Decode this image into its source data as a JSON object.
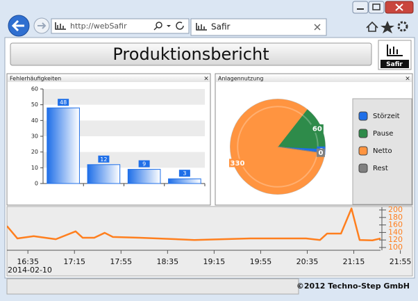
{
  "browser": {
    "url": "http://webSafir",
    "tab_title": "Safir"
  },
  "header": {
    "title": "Produktionsbericht",
    "logo": "Safir"
  },
  "footer": {
    "copyright": "©2012 Techno-Step GmbH"
  },
  "chart_data": [
    {
      "type": "bar",
      "title": "Fehlerhäufigkeiten",
      "categories": [
        null,
        null,
        null,
        null
      ],
      "values": [
        48,
        12,
        9,
        3
      ],
      "color": "#1f6fe8",
      "ylim": [
        0,
        60
      ],
      "yticks": [
        0,
        10,
        20,
        30,
        40,
        50,
        60
      ],
      "grid": true
    },
    {
      "type": "pie",
      "title": "Anlagennutzung",
      "categories": [
        "Störzeit",
        "Pause",
        "Netto",
        "Rest"
      ],
      "values": [
        6,
        60,
        330,
        0
      ],
      "colors": [
        "#1f6fe8",
        "#2e8b4a",
        "#ff9440",
        "#808080"
      ]
    },
    {
      "type": "line",
      "x": [
        "2014-02-10T16:17",
        "2014-02-10T16:26",
        "2014-02-10T16:40",
        "2014-02-10T16:59",
        "2014-02-10T17:16",
        "2014-02-10T17:22",
        "2014-02-10T17:32",
        "2014-02-10T17:41",
        "2014-02-10T17:48",
        "2014-02-10T18:11",
        "2014-02-10T18:58",
        "2014-02-10T19:46",
        "2014-02-10T20:34",
        "2014-02-10T20:46",
        "2014-02-10T20:52",
        "2014-02-10T21:04",
        "2014-02-10T21:13",
        "2014-02-10T21:20",
        "2014-02-10T21:31",
        "2014-02-10T21:38"
      ],
      "series": [
        {
          "color": "#ff7f1e",
          "axis": "y2",
          "values": [
            157,
            124,
            130,
            122,
            143,
            126,
            126,
            139,
            128,
            126,
            120,
            124,
            124,
            120,
            137,
            137,
            204,
            120,
            119,
            124
          ]
        }
      ],
      "xlim": [
        "2014-02-10T16:17",
        "2014-02-10T22:03"
      ],
      "xticks": [
        {
          "value": "2014-02-10T16:35",
          "label": "16:35"
        },
        {
          "value": "2014-02-10T17:15",
          "label": "17:15"
        },
        {
          "value": "2014-02-10T17:55",
          "label": "17:55"
        },
        {
          "value": "2014-02-10T18:35",
          "label": "18:35"
        },
        {
          "value": "2014-02-10T19:15",
          "label": "19:15"
        },
        {
          "value": "2014-02-10T19:55",
          "label": "19:55"
        },
        {
          "value": "2014-02-10T20:35",
          "label": "20:35"
        },
        {
          "value": "2014-02-10T21:15",
          "label": "21:15"
        },
        {
          "value": "2014-02-10T21:55",
          "label": "21:55"
        }
      ],
      "date_label": "2014-02-10",
      "y2lim": [
        90,
        210
      ],
      "y2ticks": [
        100,
        120,
        140,
        160,
        180,
        200
      ]
    }
  ]
}
